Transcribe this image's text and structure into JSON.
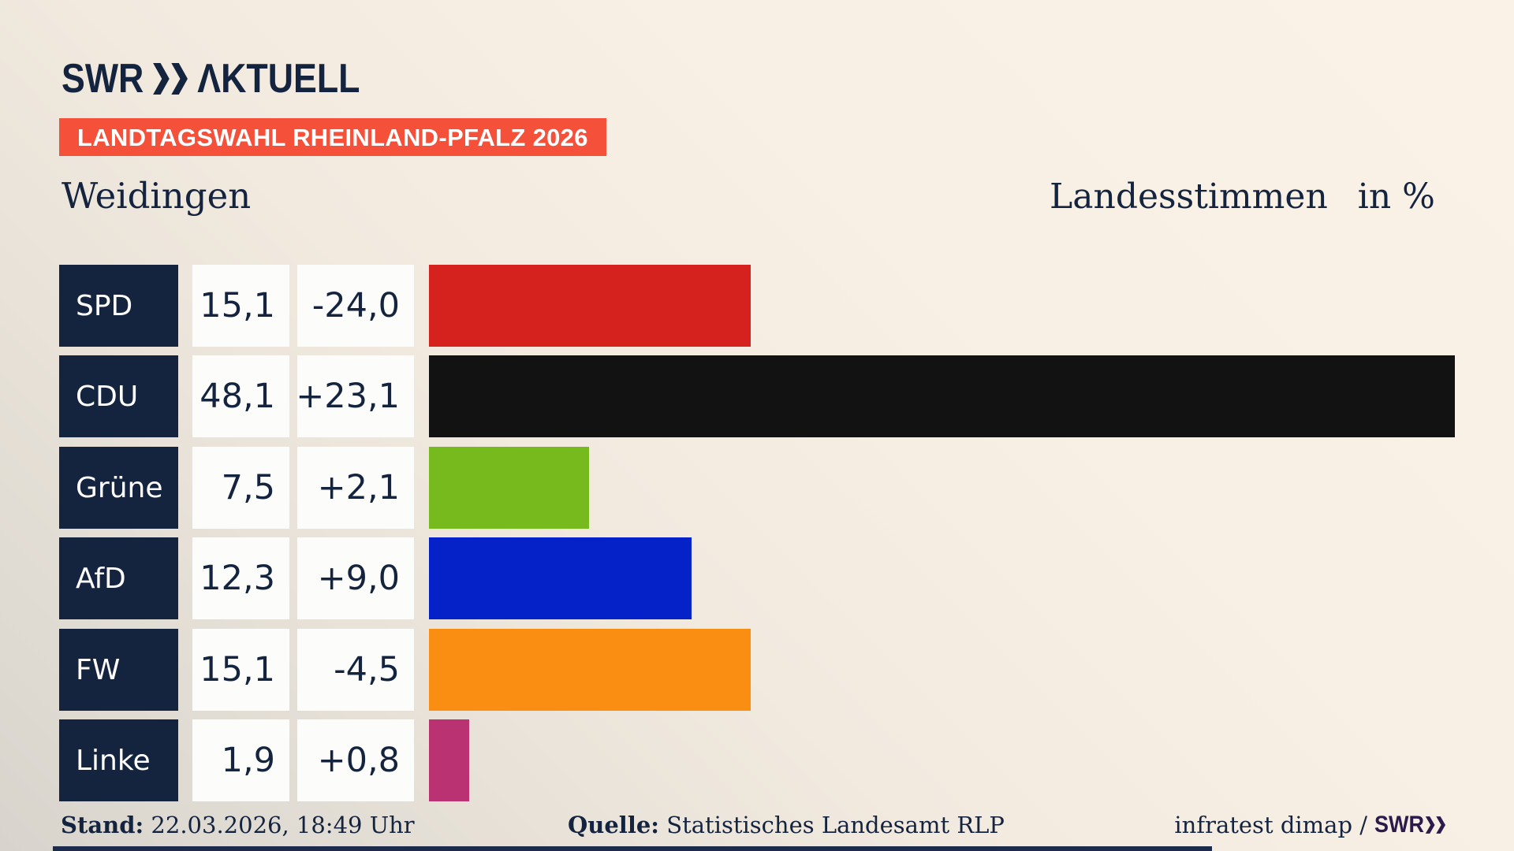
{
  "colors": {
    "navy": "#14243f",
    "badge_red": "#f4503a",
    "box_white": "#fcfcfb",
    "background_cream": "#f8f0e4",
    "background_gray": "#d8d4cd",
    "footer_logo_purple": "#2d1a4d",
    "lower_third_navy": "#1c2b4c"
  },
  "logo": {
    "swr": "SWR",
    "aktuell": "ΛKTUELL",
    "chevrons_icon": "double-chevron-right"
  },
  "header": {
    "badge": "LANDTAGSWAHL RHEINLAND-PFALZ 2026",
    "municipality": "Weidingen",
    "measure": "Landesstimmen",
    "unit": "in %"
  },
  "chart_data": {
    "type": "bar",
    "orientation": "horizontal",
    "title": "Weidingen",
    "measure": "Landesstimmen",
    "unit": "in %",
    "xlim": [
      0,
      51.4
    ],
    "grid": false,
    "legend": false,
    "rows": [
      {
        "party": "SPD",
        "value": 15.1,
        "value_label": "15,1",
        "change": -24.0,
        "change_label": "-24,0",
        "color": "#d5221f"
      },
      {
        "party": "CDU",
        "value": 48.1,
        "value_label": "48,1",
        "change": 23.1,
        "change_label": "+23,1",
        "color": "#121212"
      },
      {
        "party": "Grüne",
        "value": 7.5,
        "value_label": "7,5",
        "change": 2.1,
        "change_label": "+2,1",
        "color": "#76ba1d"
      },
      {
        "party": "AfD",
        "value": 12.3,
        "value_label": "12,3",
        "change": 9.0,
        "change_label": "+9,0",
        "color": "#0522c8"
      },
      {
        "party": "FW",
        "value": 15.1,
        "value_label": "15,1",
        "change": -4.5,
        "change_label": "-4,5",
        "color": "#f98e12"
      },
      {
        "party": "Linke",
        "value": 1.9,
        "value_label": "1,9",
        "change": 0.8,
        "change_label": "+0,8",
        "color": "#bb3272"
      }
    ]
  },
  "footer": {
    "stand_label": "Stand:",
    "stand_value": "22.03.2026, 18:49 Uhr",
    "source_label": "Quelle:",
    "source_value": "Statistisches Landesamt RLP",
    "credit_text": "infratest dimap /",
    "credit_logo": "SWR"
  }
}
